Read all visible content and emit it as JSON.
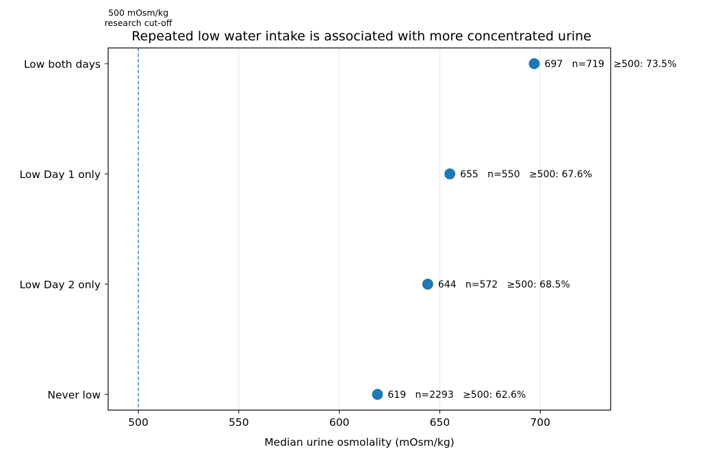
{
  "chart_data": {
    "type": "scatter",
    "title": "Repeated low water intake is associated with more concentrated urine",
    "xlabel": "Median urine osmolality (mOsm/kg)",
    "ylabel": "",
    "xlim": [
      485,
      735
    ],
    "xticks": [
      500,
      550,
      600,
      650,
      700
    ],
    "categories": [
      "Low both days",
      "Low Day 1 only",
      "Low Day 2 only",
      "Never low"
    ],
    "points": [
      {
        "category": "Low both days",
        "value": 697,
        "label": "697   n=719   ≥500: 73.5%"
      },
      {
        "category": "Low Day 1 only",
        "value": 655,
        "label": "655   n=550   ≥500: 67.6%"
      },
      {
        "category": "Low Day 2 only",
        "value": 644,
        "label": "644   n=572   ≥500: 68.5%"
      },
      {
        "category": "Never low",
        "value": 619,
        "label": "619   n=2293   ≥500: 62.6%"
      }
    ],
    "reference_line": {
      "value": 500,
      "label_line1": "500 mOsm/kg",
      "label_line2": "research cut-off"
    },
    "grid": "vertical",
    "colors": {
      "marker": "#1f77b4",
      "reference": "#1f77b4",
      "grid": "#e6e6e6",
      "axes": "#000000"
    }
  }
}
